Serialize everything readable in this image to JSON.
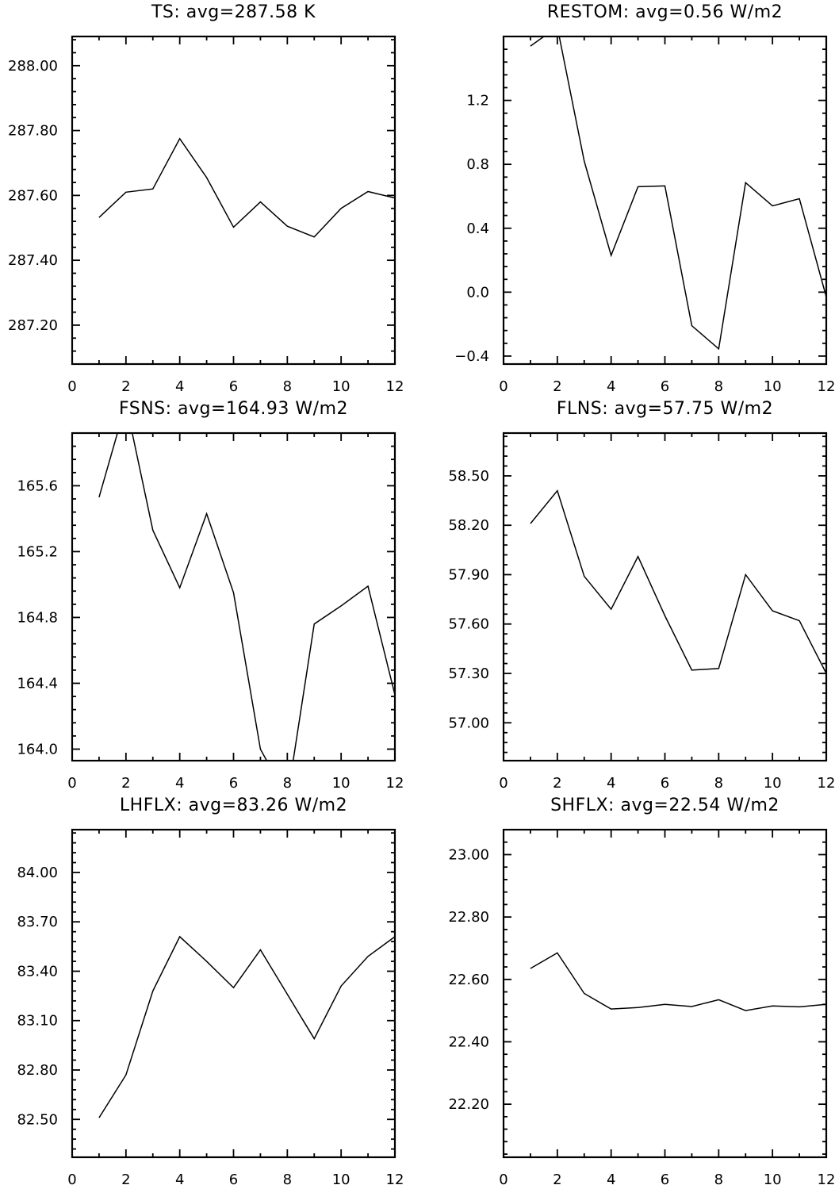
{
  "colors": {
    "background": "#ffffff",
    "ink": "#000000"
  },
  "chart_data": [
    {
      "type": "line",
      "title": "TS: avg=287.58 K",
      "xlabel": "",
      "ylabel": "",
      "xlim": [
        0,
        12
      ],
      "ylim": [
        287.08,
        288.09
      ],
      "xticks": [
        0,
        2,
        4,
        6,
        8,
        10,
        12
      ],
      "xtick_labels": [
        "0",
        "2",
        "4",
        "6",
        "8",
        "10",
        "12"
      ],
      "yticks": [
        287.2,
        287.4,
        287.6,
        287.8,
        288.0
      ],
      "ytick_labels": [
        "287.20",
        "287.40",
        "287.60",
        "287.80",
        "288.00"
      ],
      "grid": false,
      "x": [
        1,
        2,
        3,
        4,
        5,
        6,
        7,
        8,
        9,
        10,
        11,
        12
      ],
      "series": [
        {
          "values": [
            287.532,
            287.61,
            287.62,
            287.775,
            287.655,
            287.502,
            287.58,
            287.505,
            287.472,
            287.56,
            287.612,
            287.592
          ]
        }
      ]
    },
    {
      "type": "line",
      "title": "RESTOM: avg=0.56 W/m2",
      "xlabel": "",
      "ylabel": "",
      "xlim": [
        0,
        12
      ],
      "ylim": [
        -0.45,
        1.6
      ],
      "xticks": [
        0,
        2,
        4,
        6,
        8,
        10,
        12
      ],
      "xtick_labels": [
        "0",
        "2",
        "4",
        "6",
        "8",
        "10",
        "12"
      ],
      "yticks": [
        -0.4,
        0.0,
        0.4,
        0.8,
        1.2
      ],
      "ytick_labels": [
        "−0.4",
        "0.0",
        "0.4",
        "0.8",
        "1.2"
      ],
      "grid": false,
      "x": [
        1,
        2,
        3,
        4,
        5,
        6,
        7,
        8,
        9,
        10,
        11,
        12
      ],
      "series": [
        {
          "values": [
            1.54,
            1.66,
            0.82,
            0.23,
            0.66,
            0.665,
            -0.21,
            -0.355,
            0.685,
            0.54,
            0.585,
            -0.03
          ]
        }
      ]
    },
    {
      "type": "line",
      "title": "FSNS: avg=164.93 W/m2",
      "xlabel": "",
      "ylabel": "",
      "xlim": [
        0,
        12
      ],
      "ylim": [
        163.93,
        165.92
      ],
      "xticks": [
        0,
        2,
        4,
        6,
        8,
        10,
        12
      ],
      "xtick_labels": [
        "0",
        "2",
        "4",
        "6",
        "8",
        "10",
        "12"
      ],
      "yticks": [
        164.0,
        164.4,
        164.8,
        165.2,
        165.6
      ],
      "ytick_labels": [
        "164.0",
        "164.4",
        "164.8",
        "165.2",
        "165.6"
      ],
      "grid": false,
      "x": [
        1,
        2,
        3,
        4,
        5,
        6,
        7,
        8,
        9,
        10,
        11,
        12
      ],
      "series": [
        {
          "values": [
            165.53,
            166.1,
            165.33,
            164.98,
            165.43,
            164.95,
            164.0,
            163.7,
            164.76,
            164.87,
            164.99,
            164.33
          ]
        }
      ]
    },
    {
      "type": "line",
      "title": "FLNS: avg=57.75 W/m2",
      "xlabel": "",
      "ylabel": "",
      "xlim": [
        0,
        12
      ],
      "ylim": [
        56.77,
        58.76
      ],
      "xticks": [
        0,
        2,
        4,
        6,
        8,
        10,
        12
      ],
      "xtick_labels": [
        "0",
        "2",
        "4",
        "6",
        "8",
        "10",
        "12"
      ],
      "yticks": [
        57.0,
        57.3,
        57.6,
        57.9,
        58.2,
        58.5
      ],
      "ytick_labels": [
        "57.00",
        "57.30",
        "57.60",
        "57.90",
        "58.20",
        "58.50"
      ],
      "grid": false,
      "x": [
        1,
        2,
        3,
        4,
        5,
        6,
        7,
        8,
        9,
        10,
        11,
        12
      ],
      "series": [
        {
          "values": [
            58.21,
            58.41,
            57.89,
            57.69,
            58.01,
            57.65,
            57.32,
            57.33,
            57.9,
            57.68,
            57.62,
            57.3
          ]
        }
      ]
    },
    {
      "type": "line",
      "title": "LHFLX: avg=83.26 W/m2",
      "xlabel": "",
      "ylabel": "",
      "xlim": [
        0,
        12
      ],
      "ylim": [
        82.27,
        84.26
      ],
      "xticks": [
        0,
        2,
        4,
        6,
        8,
        10,
        12
      ],
      "xtick_labels": [
        "0",
        "2",
        "4",
        "6",
        "8",
        "10",
        "12"
      ],
      "yticks": [
        82.5,
        82.8,
        83.1,
        83.4,
        83.7,
        84.0
      ],
      "ytick_labels": [
        "82.50",
        "82.80",
        "83.10",
        "83.40",
        "83.70",
        "84.00"
      ],
      "grid": false,
      "x": [
        1,
        2,
        3,
        4,
        5,
        6,
        7,
        8,
        9,
        10,
        11,
        12
      ],
      "series": [
        {
          "values": [
            82.51,
            82.77,
            83.28,
            83.61,
            83.46,
            83.3,
            83.53,
            83.26,
            82.99,
            83.31,
            83.49,
            83.61
          ]
        }
      ]
    },
    {
      "type": "line",
      "title": "SHFLX: avg=22.54 W/m2",
      "xlabel": "",
      "ylabel": "",
      "xlim": [
        0,
        12
      ],
      "ylim": [
        22.03,
        23.08
      ],
      "xticks": [
        0,
        2,
        4,
        6,
        8,
        10,
        12
      ],
      "xtick_labels": [
        "0",
        "2",
        "4",
        "6",
        "8",
        "10",
        "12"
      ],
      "yticks": [
        22.2,
        22.4,
        22.6,
        22.8,
        23.0
      ],
      "ytick_labels": [
        "22.20",
        "22.40",
        "22.60",
        "22.80",
        "23.00"
      ],
      "grid": false,
      "x": [
        1,
        2,
        3,
        4,
        5,
        6,
        7,
        8,
        9,
        10,
        11,
        12
      ],
      "series": [
        {
          "values": [
            22.635,
            22.685,
            22.555,
            22.505,
            22.51,
            22.52,
            22.513,
            22.535,
            22.5,
            22.515,
            22.512,
            22.52
          ]
        }
      ]
    }
  ]
}
